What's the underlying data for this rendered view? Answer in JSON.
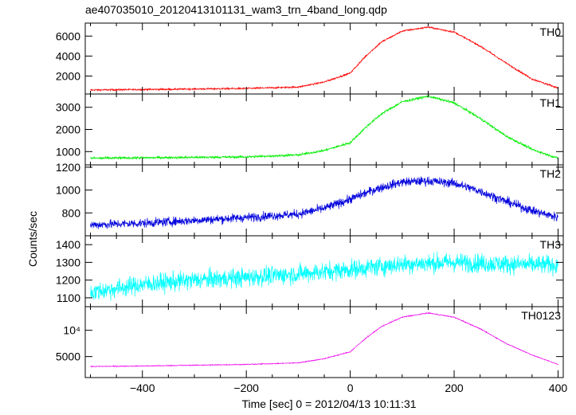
{
  "chart_data": {
    "type": "line",
    "title": "ae407035010_20120413101131_wam3_trn_4band_long.qdp",
    "xlabel": "Time [sec] 0 = 2012/04/13 10:11:31",
    "ylabel": "Counts/sec",
    "xlim": [
      -510,
      410
    ],
    "x_ticks": [
      -400,
      -200,
      0,
      200,
      400
    ],
    "x_tick_labels": [
      "−400",
      "−200",
      "0",
      "200",
      "400"
    ],
    "x_range": [
      -500,
      400
    ],
    "panels": [
      {
        "name": "TH0",
        "color": "#ff0000",
        "ylim": [
          200,
          7300
        ],
        "y_ticks": [
          2000,
          4000,
          6000
        ],
        "y_tick_labels": [
          "2000",
          "4000",
          "6000"
        ],
        "noise": 60,
        "profile_x": [
          -500,
          -400,
          -300,
          -200,
          -100,
          -50,
          0,
          30,
          60,
          100,
          150,
          200,
          250,
          300,
          350,
          400
        ],
        "profile_y": [
          600,
          650,
          700,
          750,
          900,
          1400,
          2300,
          4000,
          5400,
          6500,
          6900,
          6400,
          5000,
          3300,
          1700,
          800
        ]
      },
      {
        "name": "TH1",
        "color": "#00ee00",
        "ylim": [
          400,
          3600
        ],
        "y_ticks": [
          1000,
          2000,
          3000
        ],
        "y_tick_labels": [
          "1000",
          "2000",
          "3000"
        ],
        "noise": 40,
        "profile_x": [
          -500,
          -400,
          -300,
          -200,
          -100,
          -50,
          0,
          30,
          60,
          100,
          150,
          200,
          250,
          300,
          350,
          400
        ],
        "profile_y": [
          700,
          720,
          740,
          760,
          850,
          1050,
          1400,
          2100,
          2700,
          3250,
          3500,
          3200,
          2500,
          1700,
          1100,
          700
        ]
      },
      {
        "name": "TH2",
        "color": "#0000dd",
        "ylim": [
          600,
          1220
        ],
        "y_ticks": [
          800,
          1000,
          1200
        ],
        "y_tick_labels": [
          "800",
          "1000",
          "1200"
        ],
        "noise": 28,
        "profile_x": [
          -500,
          -400,
          -300,
          -200,
          -100,
          -50,
          0,
          50,
          100,
          150,
          200,
          250,
          300,
          350,
          400
        ],
        "profile_y": [
          695,
          710,
          735,
          760,
          790,
          840,
          920,
          1010,
          1070,
          1080,
          1060,
          990,
          900,
          820,
          760
        ]
      },
      {
        "name": "TH3",
        "color": "#00ffff",
        "ylim": [
          1050,
          1450
        ],
        "y_ticks": [
          1100,
          1200,
          1300,
          1400
        ],
        "y_tick_labels": [
          "1100",
          "1200",
          "1300",
          "1400"
        ],
        "noise": 38,
        "profile_x": [
          -500,
          -400,
          -300,
          -200,
          -100,
          0,
          100,
          200,
          300,
          400
        ],
        "profile_y": [
          1130,
          1175,
          1200,
          1215,
          1235,
          1260,
          1290,
          1300,
          1290,
          1285
        ]
      },
      {
        "name": "TH0123",
        "color": "#ee00ee",
        "ylim": [
          1000,
          14500
        ],
        "y_ticks": [
          5000,
          10000
        ],
        "y_tick_labels": [
          "5000",
          "10⁴"
        ],
        "noise": 60,
        "profile_x": [
          -500,
          -400,
          -300,
          -200,
          -100,
          -50,
          0,
          30,
          60,
          100,
          150,
          200,
          250,
          300,
          350,
          400
        ],
        "profile_y": [
          3100,
          3200,
          3350,
          3500,
          3800,
          4600,
          5900,
          8500,
          10700,
          12500,
          13300,
          12500,
          10300,
          7500,
          5300,
          3500
        ]
      }
    ]
  }
}
